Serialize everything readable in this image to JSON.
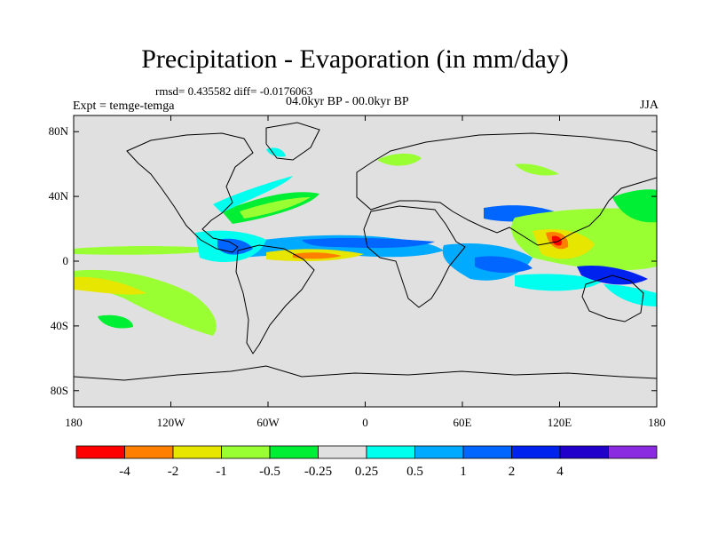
{
  "title": "Precipitation - Evaporation (in mm/day)",
  "stats": "rmsd= 0.435582 diff= -0.0176063",
  "experiment": "Expt = temge-temga",
  "period": "04.0kyr BP - 00.0kyr BP",
  "season": "JJA",
  "map": {
    "lon_range": [
      -180,
      180
    ],
    "lat_range": [
      -90,
      90
    ],
    "ocean_color": "#e0e0e0",
    "y_ticks": [
      {
        "value": 80,
        "label": "80N"
      },
      {
        "value": 40,
        "label": "40N"
      },
      {
        "value": 0,
        "label": "0"
      },
      {
        "value": -40,
        "label": "40S"
      },
      {
        "value": -80,
        "label": "80S"
      }
    ],
    "x_ticks": [
      {
        "value": -180,
        "label": "180"
      },
      {
        "value": -120,
        "label": "120W"
      },
      {
        "value": -60,
        "label": "60W"
      },
      {
        "value": 0,
        "label": "0"
      },
      {
        "value": 60,
        "label": "60E"
      },
      {
        "value": 120,
        "label": "120E"
      },
      {
        "value": 180,
        "label": "180"
      }
    ]
  },
  "colorbar": {
    "colors": [
      "#ff0000",
      "#ff8000",
      "#e6e600",
      "#99ff33",
      "#00ee33",
      "#e0e0e0",
      "#00ffee",
      "#00aaff",
      "#0066ff",
      "#0022ee",
      "#2200cc",
      "#8a2be2"
    ],
    "labels": [
      "-4",
      "-2",
      "-1",
      "-0.5",
      "-0.25",
      "0.25",
      "0.5",
      "1",
      "2",
      "4"
    ]
  }
}
